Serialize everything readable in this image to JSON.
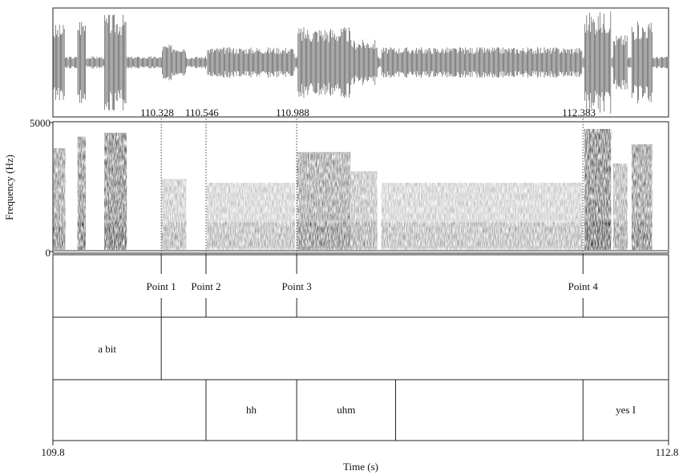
{
  "chart_data": {
    "type": "spectrogram",
    "xlabel": "Time (s)",
    "ylabel": "Frequency (Hz)",
    "xlim": [
      109.8,
      112.8
    ],
    "ylim": [
      0,
      5000
    ],
    "x_tick_labels": [
      "109.8",
      "112.8"
    ],
    "y_tick_labels": [
      "5000",
      "0"
    ],
    "time_marks": [
      {
        "t": 110.328,
        "label": "110.328"
      },
      {
        "t": 110.546,
        "label": "110.546"
      },
      {
        "t": 110.988,
        "label": "110.988"
      },
      {
        "t": 112.383,
        "label": "112.383"
      }
    ],
    "point_tier": [
      {
        "t": 110.328,
        "label": "Point 1"
      },
      {
        "t": 110.546,
        "label": "Point 2"
      },
      {
        "t": 110.988,
        "label": "Point 3"
      },
      {
        "t": 112.383,
        "label": "Point 4"
      }
    ],
    "word_tier": {
      "boundaries": [
        110.328
      ],
      "intervals": [
        {
          "start": 109.8,
          "end": 110.328,
          "label": "a bit"
        },
        {
          "start": 110.328,
          "end": 112.8,
          "label": ""
        }
      ]
    },
    "phrase_tier": {
      "boundaries": [
        110.546,
        110.988,
        111.47,
        112.383
      ],
      "intervals": [
        {
          "start": 109.8,
          "end": 110.546,
          "label": ""
        },
        {
          "start": 110.546,
          "end": 110.988,
          "label": "hh"
        },
        {
          "start": 110.988,
          "end": 111.47,
          "label": "uhm"
        },
        {
          "start": 111.47,
          "end": 112.383,
          "label": ""
        },
        {
          "start": 112.383,
          "end": 112.8,
          "label": "yes I"
        }
      ]
    },
    "energy_segments": [
      {
        "start": 109.8,
        "end": 109.86,
        "level": 0.75
      },
      {
        "start": 109.92,
        "end": 109.96,
        "level": 0.9
      },
      {
        "start": 110.05,
        "end": 110.16,
        "level": 0.95
      },
      {
        "start": 110.33,
        "end": 110.45,
        "level": 0.35
      },
      {
        "start": 110.55,
        "end": 110.98,
        "level": 0.3
      },
      {
        "start": 110.99,
        "end": 111.25,
        "level": 0.7
      },
      {
        "start": 111.25,
        "end": 111.38,
        "level": 0.45
      },
      {
        "start": 111.4,
        "end": 112.38,
        "level": 0.3
      },
      {
        "start": 112.39,
        "end": 112.52,
        "level": 1.0
      },
      {
        "start": 112.53,
        "end": 112.6,
        "level": 0.55
      },
      {
        "start": 112.62,
        "end": 112.72,
        "level": 0.8
      }
    ]
  }
}
